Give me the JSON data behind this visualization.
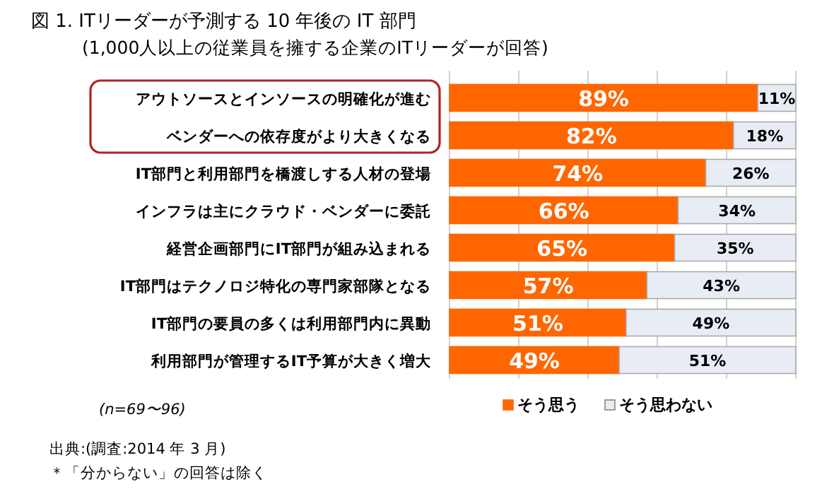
{
  "chart_data": {
    "type": "bar",
    "orientation": "horizontal",
    "stacked": true,
    "title": "図 1. ITリーダーが予測する 10 年後の IT 部門",
    "subtitle": "(1,000人以上の従業員を擁する企業のITリーダーが回答)",
    "categories": [
      "アウトソースとインソースの明確化が進む",
      "ベンダーへの依存度がより大きくなる",
      "IT部門と利用部門を橋渡しする人材の登場",
      "インフラは主にクラウド・ベンダーに委託",
      "経営企画部門にIT部門が組み込まれる",
      "IT部門はテクノロジ特化の専門家部隊となる",
      "IT部門の要員の多くは利用部門内に異動",
      "利用部門が管理するIT予算が大きく増大"
    ],
    "series": [
      {
        "name": "そう思う",
        "color": "#ff6600",
        "values": [
          89,
          82,
          74,
          66,
          65,
          57,
          51,
          49
        ],
        "value_labels": [
          "89%",
          "82%",
          "74%",
          "66%",
          "65%",
          "57%",
          "51%",
          "49%"
        ]
      },
      {
        "name": "そう思わない",
        "color": "#e8ecf4",
        "values": [
          11,
          18,
          26,
          34,
          35,
          43,
          49,
          51
        ],
        "value_labels": [
          "11%",
          "18%",
          "26%",
          "34%",
          "35%",
          "43%",
          "49%",
          "51%"
        ]
      }
    ],
    "grid": "x",
    "legend": "bottom",
    "tick_labels": "y",
    "annotations": [
      "(n=69〜96)",
      "出典:(調査:2014 年 3 月)",
      "＊「分からない」の回答は除く"
    ]
  }
}
